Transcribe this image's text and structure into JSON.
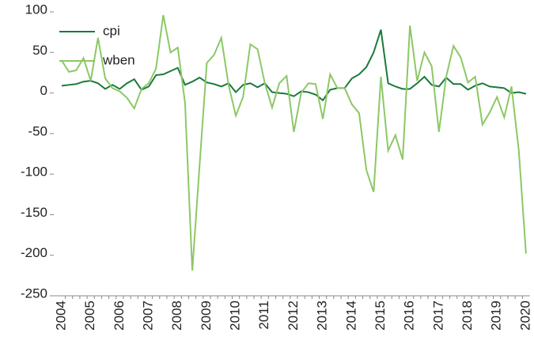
{
  "chart_data": {
    "type": "line",
    "categories": [
      "2004",
      null,
      null,
      null,
      "2005",
      null,
      null,
      null,
      "2006",
      null,
      null,
      null,
      "2007",
      null,
      null,
      null,
      "2008",
      null,
      null,
      null,
      "2009",
      null,
      null,
      null,
      "2010",
      null,
      null,
      null,
      "2011",
      null,
      null,
      null,
      "2012",
      null,
      null,
      null,
      "2013",
      null,
      null,
      null,
      "2014",
      null,
      null,
      null,
      "2015",
      null,
      null,
      null,
      "2016",
      null,
      null,
      null,
      "2017",
      null,
      null,
      null,
      "2018",
      null,
      null,
      null,
      "2019",
      null,
      null,
      null,
      "2020"
    ],
    "series": [
      {
        "name": "cpi",
        "color": "#1a7a3a",
        "values": [
          9,
          10,
          11,
          14,
          15,
          12,
          5,
          10,
          5,
          12,
          17,
          4,
          8,
          22,
          23,
          27,
          31,
          10,
          14,
          19,
          13,
          11,
          8,
          12,
          1,
          10,
          12,
          7,
          12,
          1,
          0,
          -1,
          -4,
          2,
          1,
          -2,
          -9,
          4,
          6,
          6,
          18,
          23,
          32,
          50,
          78,
          12,
          8,
          5,
          5,
          12,
          20,
          10,
          8,
          19,
          11,
          11,
          4,
          9,
          12,
          8,
          7,
          6,
          0,
          1,
          -1
        ]
      },
      {
        "name": "wben",
        "color": "#8cc866",
        "values": [
          40,
          26,
          28,
          43,
          15,
          68,
          18,
          6,
          2,
          -6,
          -19,
          5,
          12,
          30,
          96,
          50,
          56,
          -12,
          -219,
          -90,
          37,
          47,
          68,
          10,
          -28,
          -5,
          60,
          54,
          12,
          -18,
          12,
          21,
          -48,
          0,
          12,
          11,
          -32,
          23,
          6,
          6,
          -14,
          -25,
          -95,
          -122,
          20,
          -71,
          -52,
          -82,
          83,
          15,
          50,
          33,
          -48,
          20,
          58,
          44,
          13,
          20,
          -39,
          -24,
          -5,
          -30,
          8,
          -70,
          -198
        ]
      }
    ],
    "ylim": [
      -250,
      100
    ],
    "yticks": [
      -250,
      -200,
      -150,
      -100,
      -50,
      0,
      50,
      100
    ],
    "grid": false,
    "legend": "top-left"
  }
}
